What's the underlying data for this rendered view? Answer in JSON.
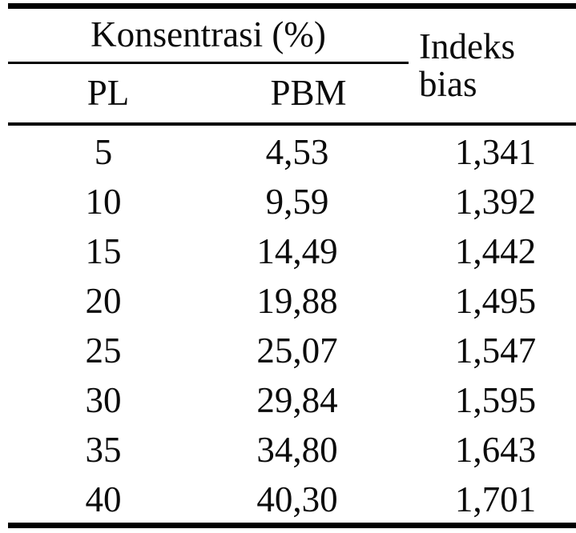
{
  "page": {
    "background": "#ffffff"
  },
  "colors": {
    "rule_line": "#000000",
    "text": "#0b0b0b"
  },
  "table": {
    "group_header": "Konsentrasi (%)",
    "sub_headers": [
      "PL",
      "PBM"
    ],
    "third_header": {
      "line1": "Indeks",
      "line2": "bias"
    },
    "rows": [
      [
        "5",
        "4,53",
        "1,341"
      ],
      [
        "10",
        "9,59",
        "1,392"
      ],
      [
        "15",
        "14,49",
        "1,442"
      ],
      [
        "20",
        "19,88",
        "1,495"
      ],
      [
        "25",
        "25,07",
        "1,547"
      ],
      [
        "30",
        "29,84",
        "1,595"
      ],
      [
        "35",
        "34,80",
        "1,643"
      ],
      [
        "40",
        "40,30",
        "1,701"
      ]
    ]
  }
}
